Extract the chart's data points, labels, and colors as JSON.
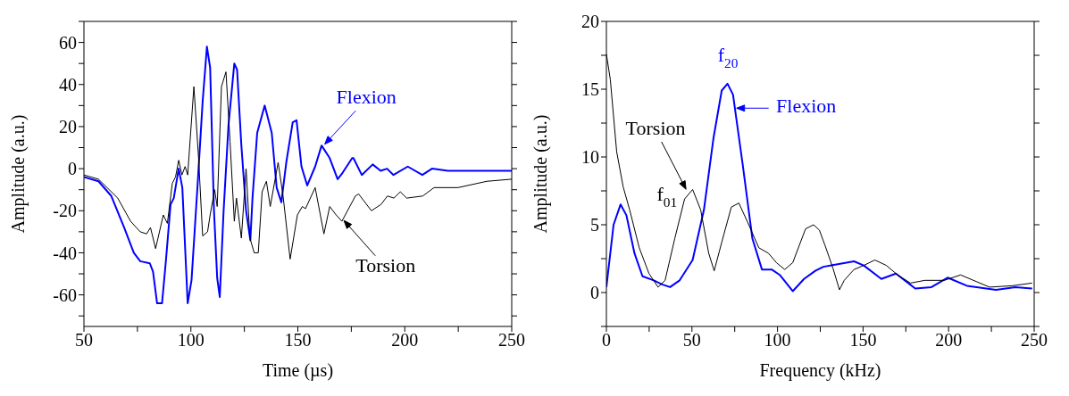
{
  "chart_data": [
    {
      "type": "line",
      "xlabel": "Time (µs)",
      "ylabel": "Amplitude (a.u.)",
      "xlim": [
        50,
        250
      ],
      "ylim": [
        -75,
        70
      ],
      "xticks": [
        50,
        {
          "value": 75,
          "label": null
        },
        100,
        {
          "value": 125,
          "label": null
        },
        150,
        {
          "value": 175,
          "label": null
        },
        200,
        {
          "value": 225,
          "label": null
        },
        250
      ],
      "yticks": [
        {
          "value": -70,
          "label": null
        },
        -60,
        {
          "value": -50,
          "label": null
        },
        -40,
        {
          "value": -30,
          "label": null
        },
        -20,
        {
          "value": -10,
          "label": null
        },
        0,
        {
          "value": 10,
          "label": null
        },
        20,
        {
          "value": 30,
          "label": null
        },
        40,
        {
          "value": 50,
          "label": null
        },
        60,
        {
          "value": 70,
          "label": null
        }
      ],
      "grid": false,
      "legend": false,
      "marker": "none",
      "line_style": "solid",
      "series": [
        {
          "color": "#0000ff",
          "x": [
            50,
            56.8,
            62.8,
            68.8,
            73.3,
            76.3,
            80.8,
            82.3,
            84.2,
            86.5,
            88.3,
            90.5,
            92,
            94.3,
            96,
            98.5,
            100.3,
            103.3,
            105.5,
            107.5,
            109,
            110.8,
            112.3,
            113.5,
            115.3,
            117.6,
            120.3,
            121.6,
            123.6,
            125.8,
            127.8,
            128.8,
            131,
            134.5,
            137.8,
            140.1,
            142.3,
            144.6,
            147.6,
            149.4,
            151.7,
            154.4,
            158.1,
            161.1,
            164.9,
            168.6,
            170.9,
            175.4,
            176,
            179.9,
            185,
            188.7,
            191.7,
            194.7,
            201.4,
            208.2,
            212.7,
            220.2,
            226.2,
            233.7,
            244.2,
            250
          ],
          "values": [
            -4,
            -6,
            -13,
            -28,
            -40,
            -44,
            -45,
            -49,
            -64,
            -64,
            -44,
            -17,
            -14,
            0,
            -9,
            -64,
            -53,
            -5,
            32,
            58,
            48,
            -20,
            -52,
            -61,
            -20,
            21,
            50,
            47,
            11,
            -20,
            -34,
            -14,
            17,
            30,
            17,
            -9,
            -16,
            3,
            22,
            23,
            1,
            -8,
            1,
            11,
            5,
            -5,
            -2,
            5,
            5,
            -3,
            2,
            -1,
            0,
            -3,
            1,
            -3,
            0,
            -1,
            -1,
            -1,
            -1,
            -1
          ]
        },
        {
          "color": "#000000",
          "x": [
            50,
            56.8,
            65.8,
            71.8,
            76.3,
            79.3,
            81.1,
            83.5,
            87.1,
            89,
            91.3,
            92.8,
            94.3,
            95.8,
            97.3,
            98.5,
            101.4,
            103.6,
            105.5,
            107.8,
            109,
            111.1,
            112.3,
            114.3,
            116.4,
            118.3,
            120.3,
            121.3,
            123.6,
            125.8,
            127.6,
            129.6,
            131.5,
            133.3,
            135.3,
            137.1,
            140.8,
            143.1,
            146.4,
            149.8,
            152.1,
            153.6,
            158.1,
            162.2,
            164.9,
            167.9,
            170.6,
            176.9,
            178.4,
            184.4,
            188.9,
            191.9,
            194.9,
            197.9,
            200.9,
            208.4,
            213.7,
            224.9,
            238.4,
            250
          ],
          "values": [
            -3,
            -5,
            -14,
            -25,
            -30,
            -31,
            -28,
            -38,
            -22,
            -26,
            -7,
            -4,
            4,
            -3,
            1,
            -3,
            39,
            5,
            -32,
            -30,
            -22,
            -10,
            -18,
            39,
            46,
            13,
            -25,
            -14,
            -33,
            0,
            -33,
            -40,
            -40,
            -11,
            -6,
            -18,
            3,
            -13,
            -43,
            -22,
            -18,
            -19,
            -9,
            -31,
            -18,
            -22,
            -25,
            -13,
            -12,
            -20,
            -17,
            -13,
            -14,
            -11,
            -14,
            -13,
            -9,
            -9,
            -6,
            -5
          ]
        }
      ],
      "annotations": [
        {
          "text": "Flexion",
          "x": 162,
          "y": 11
        },
        {
          "text": "Torsion",
          "x": 171,
          "y": -24
        }
      ]
    },
    {
      "type": "line",
      "xlabel": "Frequency (kHz)",
      "ylabel": "Amplitude (a.u.)",
      "xlim": [
        0,
        250
      ],
      "ylim": [
        -2.5,
        20
      ],
      "xticks": [
        0,
        {
          "value": 25,
          "label": null
        },
        50,
        {
          "value": 75,
          "label": null
        },
        100,
        {
          "value": 125,
          "label": null
        },
        150,
        {
          "value": 175,
          "label": null
        },
        200,
        {
          "value": 225,
          "label": null
        },
        250
      ],
      "yticks": [
        {
          "value": -2.5,
          "label": null
        },
        0,
        {
          "value": 2.5,
          "label": null
        },
        5,
        {
          "value": 7.5,
          "label": null
        },
        10,
        {
          "value": 12.5,
          "label": null
        },
        15,
        {
          "value": 17.5,
          "label": null
        },
        20
      ],
      "grid": false,
      "legend": false,
      "marker": "none",
      "line_style": "solid",
      "series": [
        {
          "color": "#0000ff",
          "x": [
            0,
            4.2,
            8.3,
            11.7,
            16.4,
            21.1,
            27.7,
            32.5,
            37.2,
            42.8,
            50.4,
            57,
            62.6,
            67.4,
            70.8,
            74,
            79.6,
            85.3,
            90.9,
            96.6,
            101.3,
            108.9,
            115.5,
            122.1,
            126.8,
            131.5,
            144.7,
            150.4,
            160.7,
            169.2,
            180.5,
            190,
            199.4,
            210.7,
            227.7,
            239,
            248.8
          ],
          "values": [
            0.4,
            5.0,
            6.5,
            5.7,
            2.9,
            1.2,
            0.9,
            0.6,
            0.4,
            0.9,
            2.4,
            6.1,
            11.4,
            14.9,
            15.4,
            14.6,
            9.5,
            4.0,
            1.7,
            1.7,
            1.3,
            0.1,
            1.0,
            1.6,
            1.9,
            2.0,
            2.3,
            2.0,
            1.0,
            1.4,
            0.3,
            0.4,
            1.1,
            0.5,
            0.2,
            0.4,
            0.3
          ]
        },
        {
          "color": "#000000",
          "x": [
            0,
            2.3,
            6,
            9.8,
            13.6,
            19.2,
            24.9,
            30.2,
            34.3,
            40,
            45.7,
            50.4,
            55.1,
            59.8,
            63,
            67.4,
            73,
            77.4,
            82.5,
            89.1,
            94.7,
            99.4,
            104.2,
            108.9,
            116.4,
            121.1,
            124.5,
            127.7,
            132.4,
            136.2,
            139,
            144.7,
            150.4,
            156.9,
            163.6,
            170.2,
            177.7,
            186.2,
            197.5,
            207,
            214.5,
            223.9,
            237.1,
            248.8
          ],
          "values": [
            17.6,
            15.7,
            10.4,
            7.8,
            6.1,
            3.3,
            1.4,
            0.4,
            0.9,
            4.0,
            6.9,
            7.6,
            6.1,
            2.9,
            1.6,
            3.7,
            6.3,
            6.6,
            5.2,
            3.3,
            2.9,
            2.2,
            1.7,
            2.2,
            4.7,
            5.0,
            4.6,
            3.5,
            1.8,
            0.2,
            0.9,
            1.7,
            2.0,
            2.4,
            2.0,
            1.3,
            0.7,
            0.9,
            0.9,
            1.3,
            0.9,
            0.4,
            0.5,
            0.7
          ]
        }
      ],
      "annotations": [
        {
          "text": "f$_{20}$",
          "x": 71,
          "y": 15.4
        },
        {
          "text": "Flexion",
          "x": 75,
          "y": 13.6
        },
        {
          "text": "Torsion",
          "x": 47,
          "y": 7.5
        },
        {
          "text": "f$_{01}$",
          "x": 50,
          "y": 7.6
        }
      ]
    }
  ]
}
